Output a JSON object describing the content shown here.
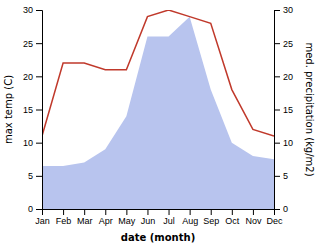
{
  "chart_data": {
    "type": "line",
    "categories": [
      "Jan",
      "Feb",
      "Mar",
      "Apr",
      "May",
      "Jun",
      "Jul",
      "Aug",
      "Sep",
      "Oct",
      "Nov",
      "Dec"
    ],
    "xlabel": "date (month)",
    "ylabel": "max temp (C)",
    "y2label": "med. precipitation (kg/m2)",
    "ylim": [
      0,
      30
    ],
    "yticks": [
      0,
      5,
      10,
      15,
      20,
      25,
      30
    ],
    "y2lim": [
      0,
      30
    ],
    "y2ticks": [
      0,
      5,
      10,
      15,
      20,
      25,
      30
    ],
    "grid": false,
    "series": [
      {
        "type": "area",
        "axis": "y2",
        "color": "#b8c4ee",
        "values": [
          6.5,
          6.5,
          7,
          9,
          14,
          26,
          26,
          29,
          18,
          10,
          8,
          7.5
        ]
      },
      {
        "type": "line",
        "color": "#c0392b",
        "values": [
          11,
          22,
          22,
          21,
          21,
          29,
          30,
          29,
          28,
          18,
          12,
          11
        ]
      }
    ]
  }
}
